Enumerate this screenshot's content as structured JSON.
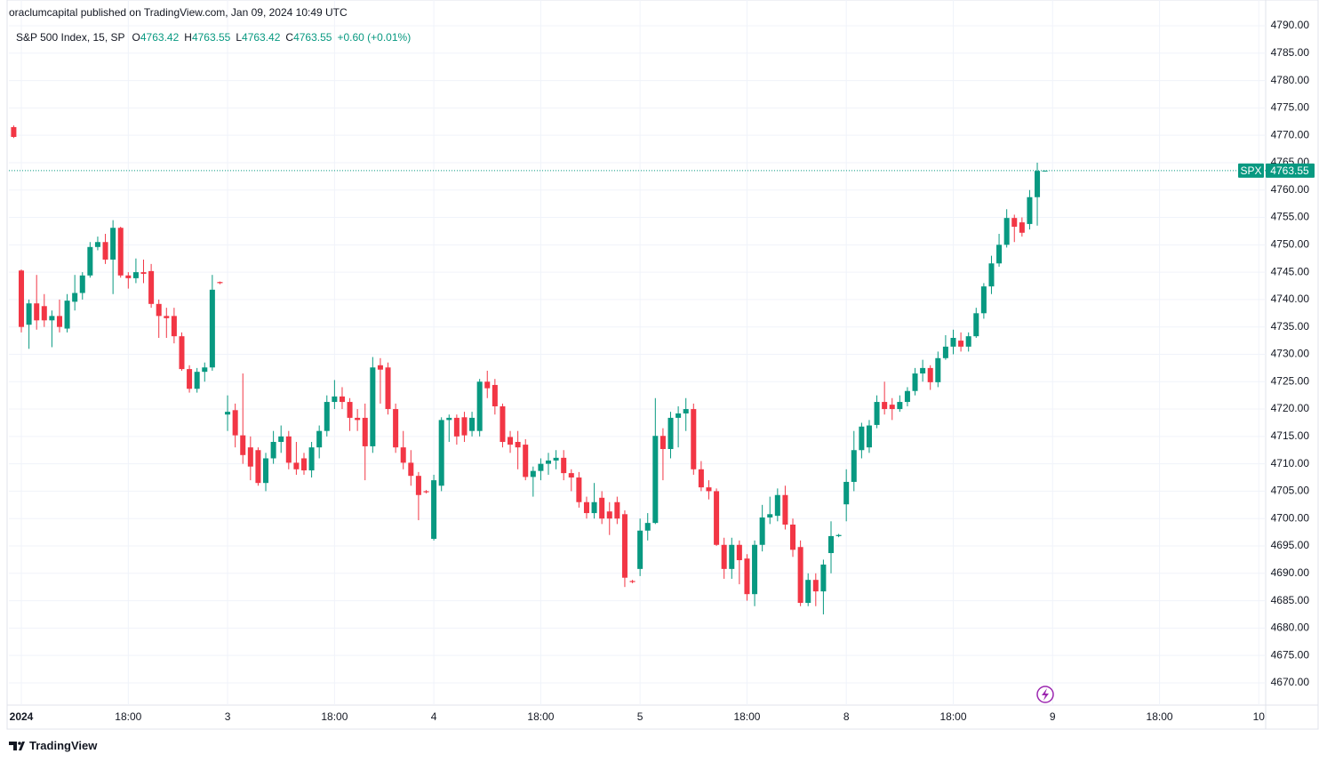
{
  "header": {
    "published": "oraclumcapital published on TradingView.com, Jan 09, 2024 10:49 UTC"
  },
  "legend": {
    "name": "S&P 500 Index, 15, SP",
    "open_label": "O",
    "open": 4763.42,
    "high_label": "H",
    "high": 4763.55,
    "low_label": "L",
    "low": 4763.42,
    "close_label": "C",
    "close": 4763.55,
    "change": "+0.60 (+0.01%)"
  },
  "price_tag": {
    "symbol": "SPX",
    "value": 4763.55
  },
  "footer": {
    "brand": "TradingView"
  },
  "chart_data": {
    "type": "candlestick",
    "up_color": "#089981",
    "down_color": "#f23645",
    "grid": true,
    "xlim": [
      -0.63,
      163.9
    ],
    "ylim": [
      4666.42,
      4794.71
    ],
    "xticks": [
      {
        "value": 1,
        "label": "2024"
      },
      {
        "value": 15,
        "label": "18:00"
      },
      {
        "value": 28,
        "label": "3"
      },
      {
        "value": 42,
        "label": "18:00"
      },
      {
        "value": 55,
        "label": "4"
      },
      {
        "value": 69,
        "label": "18:00"
      },
      {
        "value": 82,
        "label": "5"
      },
      {
        "value": 96,
        "label": "18:00"
      },
      {
        "value": 109,
        "label": "8"
      },
      {
        "value": 123,
        "label": "18:00"
      },
      {
        "value": 136,
        "label": "9"
      },
      {
        "value": 150,
        "label": "18:00"
      },
      {
        "value": 163,
        "label": "10"
      }
    ],
    "yticks": [
      {
        "value": 4670,
        "label": "4670.00"
      },
      {
        "value": 4675,
        "label": "4675.00"
      },
      {
        "value": 4680,
        "label": "4680.00"
      },
      {
        "value": 4685,
        "label": "4685.00"
      },
      {
        "value": 4690,
        "label": "4690.00"
      },
      {
        "value": 4695,
        "label": "4695.00"
      },
      {
        "value": 4700,
        "label": "4700.00"
      },
      {
        "value": 4705,
        "label": "4705.00"
      },
      {
        "value": 4710,
        "label": "4710.00"
      },
      {
        "value": 4715,
        "label": "4715.00"
      },
      {
        "value": 4720,
        "label": "4720.00"
      },
      {
        "value": 4725,
        "label": "4725.00"
      },
      {
        "value": 4730,
        "label": "4730.00"
      },
      {
        "value": 4735,
        "label": "4735.00"
      },
      {
        "value": 4740,
        "label": "4740.00"
      },
      {
        "value": 4745,
        "label": "4745.00"
      },
      {
        "value": 4750,
        "label": "4750.00"
      },
      {
        "value": 4755,
        "label": "4755.00"
      },
      {
        "value": 4760,
        "label": "4760.00"
      },
      {
        "value": 4765,
        "label": "4765.00"
      },
      {
        "value": 4770,
        "label": "4770.00"
      },
      {
        "value": 4775,
        "label": "4775.00"
      },
      {
        "value": 4780,
        "label": "4780.00"
      },
      {
        "value": 4785,
        "label": "4785.00"
      },
      {
        "value": 4790,
        "label": "4790.00"
      }
    ],
    "open": [
      4771.5,
      4745.3,
      4735.4,
      4739.3,
      4738.8,
      4736.2,
      4737,
      4734.7,
      4739.6,
      4741.2,
      4744.4,
      4749.6,
      4750.5,
      4747.3,
      4753.1,
      4744.4,
      4743.9,
      4745,
      4745.2,
      4739.2,
      4737,
      4737,
      4733.3,
      4727.3,
      4723.7,
      4726.8,
      4727.6,
      4743.2,
      4719,
      4719.8,
      4715.2,
      4713,
      4712.5,
      4706.5,
      4711,
      4714,
      4715,
      4710.2,
      4711,
      4708.8,
      4713,
      4716,
      4721.3,
      4722.3,
      4721.3,
      4718.4,
      4718.4,
      4713.2,
      4728,
      4727.6,
      4720,
      4713,
      4710.2,
      4707.8,
      4705,
      4696.3,
      4706,
      4718,
      4718.4,
      4718.5,
      4716,
      4716,
      4725,
      4724.4,
      4720.5,
      4714.9,
      4714,
      4713.5,
      4707.6,
      4708.7,
      4710,
      4710.6,
      4711.1,
      4708.3,
      4707.5,
      4703,
      4701,
      4703.8,
      4701.3,
      4703,
      4700.8,
      4688.6,
      4690.8,
      4697.8,
      4699.2,
      4715.1,
      4712.7,
      4718.4,
      4719.2,
      4720,
      4709,
      4705.7,
      4705,
      4695.2,
      4690.8,
      4695.2,
      4692.7,
      4686.2,
      4695.2,
      4700.2,
      4700.5,
      4704.3,
      4698.9,
      4694.8,
      4684.6,
      4688.8,
      4686.7,
      4693.7,
      4696.8,
      4702.6,
      4706.7,
      4712.5,
      4713,
      4717.1,
      4721.3,
      4720.8,
      4720,
      4721.3,
      4723.3,
      4726.5,
      4727.5,
      4724.9,
      4729.3,
      4731.4,
      4732.5,
      4731.4,
      4733.3,
      4737.5,
      4742.4,
      4746.6,
      4750,
      4754.9,
      4754.1,
      4753.8,
      4758.7,
      4763.42
    ],
    "high": [
      4771.8,
      4745.5,
      4740,
      4744.5,
      4741,
      4738,
      4740,
      4741,
      4744.5,
      4745,
      4750.5,
      4751.5,
      4752,
      4754.5,
      4753.3,
      4745,
      4747.5,
      4747.3,
      4746.5,
      4740,
      4738.5,
      4738.5,
      4734,
      4728,
      4727.5,
      4728.5,
      4744.5,
      4743.3,
      4722.5,
      4721,
      4726.5,
      4715,
      4713,
      4712,
      4716,
      4717,
      4716,
      4714,
      4712,
      4714,
      4717,
      4722.5,
      4725.3,
      4724,
      4722,
      4720,
      4721,
      4729.5,
      4729.3,
      4728.5,
      4721,
      4716,
      4712.5,
      4708.5,
      4705.2,
      4708,
      4718.5,
      4719,
      4719,
      4719.5,
      4719.5,
      4725.5,
      4727,
      4725.5,
      4721,
      4716,
      4716,
      4714.5,
      4709.5,
      4711,
      4712,
      4712.5,
      4712.5,
      4709,
      4708.5,
      4704,
      4706.5,
      4705,
      4703,
      4704,
      4701.5,
      4688.8,
      4700,
      4701,
      4722,
      4716.5,
      4719.5,
      4720.5,
      4722,
      4721,
      4710.5,
      4707,
      4705.5,
      4696.5,
      4696.5,
      4696,
      4693.5,
      4696,
      4702.5,
      4704,
      4705.5,
      4706,
      4700,
      4696,
      4690,
      4690,
      4692.5,
      4699.5,
      4697.2,
      4709,
      4716,
      4717.5,
      4718,
      4722.5,
      4725,
      4722,
      4722.5,
      4724,
      4727.5,
      4729,
      4728,
      4730.5,
      4733.5,
      4734.5,
      4734,
      4734,
      4738.5,
      4743,
      4748,
      4752,
      4756.5,
      4755.5,
      4755,
      4760,
      4765,
      4763.55
    ],
    "low": [
      4769.5,
      4734,
      4731,
      4734.5,
      4735,
      4731.3,
      4734,
      4734,
      4738,
      4740,
      4744,
      4749,
      4746.5,
      4741,
      4744,
      4742,
      4743,
      4743,
      4738.5,
      4733,
      4733,
      4732,
      4727,
      4723,
      4723,
      4725,
      4727,
      4742.8,
      4716,
      4713,
      4710,
      4707,
      4706,
      4705,
      4710,
      4712,
      4709,
      4708,
      4708,
      4707.5,
      4711,
      4715,
      4720,
      4720,
      4716,
      4716,
      4707,
      4712,
      4721,
      4719,
      4712,
      4709,
      4706,
      4699.7,
      4704.6,
      4696,
      4705,
      4714,
      4713.5,
      4714,
      4715,
      4715,
      4722,
      4719,
      4713,
      4712,
      4709,
      4707,
      4704,
      4707,
      4708,
      4709,
      4707,
      4705,
      4702,
      4700,
      4700,
      4699,
      4697,
      4699,
      4687.5,
      4688.2,
      4689.5,
      4696,
      4699,
      4707,
      4711,
      4713,
      4716,
      4708,
      4705,
      4703.5,
      4695,
      4689,
      4689,
      4688,
      4685,
      4684,
      4694,
      4699,
      4699.5,
      4698,
      4693,
      4684,
      4684,
      4684,
      4682.5,
      4690,
      4696.6,
      4699.5,
      4705,
      4711,
      4712,
      4716.5,
      4719,
      4718,
      4719.5,
      4720.5,
      4722.5,
      4725,
      4723.5,
      4724,
      4729,
      4730,
      4730.5,
      4730.5,
      4733,
      4736.5,
      4741,
      4746,
      4749.5,
      4750.5,
      4751.5,
      4752.8,
      4753.5,
      4763.42
    ],
    "close": [
      4769.7,
      4735,
      4739.3,
      4736.2,
      4736.2,
      4737,
      4735,
      4739.8,
      4741.2,
      4744.4,
      4749.6,
      4750.5,
      4747.3,
      4753.1,
      4744.4,
      4743.9,
      4745,
      4744.7,
      4739.2,
      4737,
      4736.6,
      4733.3,
      4727.3,
      4723.7,
      4726.8,
      4727.6,
      4741.8,
      4743,
      4719.5,
      4715.2,
      4711.6,
      4709.5,
      4706.5,
      4711,
      4714,
      4715,
      4710.2,
      4709,
      4708.8,
      4713,
      4716,
      4721.3,
      4722.3,
      4721.3,
      4718.4,
      4718,
      4713.2,
      4727.6,
      4727.2,
      4720,
      4713,
      4710.2,
      4707.8,
      4704.3,
      4704.8,
      4707,
      4718,
      4718.4,
      4715,
      4715.2,
      4718.4,
      4725,
      4723.8,
      4720.5,
      4714,
      4713.5,
      4713,
      4707.6,
      4708.7,
      4710,
      4710.6,
      4711.1,
      4708.3,
      4707.5,
      4703,
      4701,
      4703,
      4700,
      4700,
      4700,
      4689.2,
      4688.4,
      4697.8,
      4699.2,
      4715.1,
      4712.7,
      4718.4,
      4719.2,
      4720,
      4709,
      4705.7,
      4705,
      4695.2,
      4690.8,
      4695.2,
      4692.4,
      4686.2,
      4695.2,
      4700.2,
      4700.8,
      4704.3,
      4698.9,
      4694.3,
      4684.6,
      4688.8,
      4686.7,
      4691.6,
      4696.8,
      4697,
      4706.7,
      4712.5,
      4716.8,
      4717,
      4721.3,
      4720,
      4720,
      4721.3,
      4723.3,
      4726.5,
      4727.5,
      4724.9,
      4729.3,
      4731.4,
      4733,
      4731.4,
      4733.3,
      4737.5,
      4742.4,
      4746.6,
      4750,
      4754.9,
      4753.3,
      4752.2,
      4758.7,
      4763.5,
      4763.55
    ]
  }
}
